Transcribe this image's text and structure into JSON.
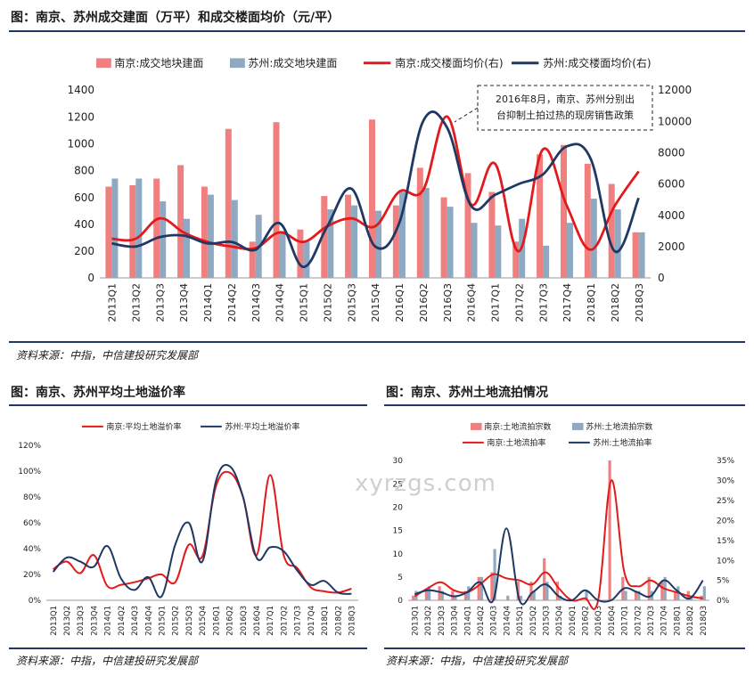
{
  "chart_data": [
    {
      "type": "bar+line",
      "title": "图：南京、苏州成交建面（万平）和成交楼面均价（元/平）",
      "categories": [
        "2013Q1",
        "2013Q2",
        "2013Q3",
        "2013Q4",
        "2014Q1",
        "2014Q2",
        "2014Q3",
        "2014Q4",
        "2015Q1",
        "2015Q2",
        "2015Q3",
        "2015Q4",
        "2016Q1",
        "2016Q2",
        "2016Q3",
        "2016Q4",
        "2017Q1",
        "2017Q2",
        "2017Q3",
        "2017Q4",
        "2018Q1",
        "2018Q2",
        "2018Q3"
      ],
      "ylim": [
        0,
        1400
      ],
      "yticks": [
        "0",
        "200",
        "400",
        "600",
        "800",
        "1000",
        "1200",
        "1400"
      ],
      "y2lim": [
        0,
        12000
      ],
      "y2ticks": [
        "0",
        "2000",
        "4000",
        "6000",
        "8000",
        "10000",
        "12000"
      ],
      "series": [
        {
          "name": "南京:成交地块建面",
          "kind": "bar",
          "axis": "left",
          "color": "#f08080",
          "values": [
            680,
            690,
            740,
            840,
            680,
            1110,
            270,
            1160,
            360,
            610,
            620,
            1180,
            540,
            820,
            600,
            780,
            640,
            270,
            920,
            990,
            850,
            700,
            340
          ]
        },
        {
          "name": "苏州:成交地块建面",
          "kind": "bar",
          "axis": "left",
          "color": "#8ea9c1",
          "values": [
            740,
            740,
            570,
            440,
            620,
            580,
            470,
            350,
            270,
            510,
            540,
            500,
            640,
            670,
            530,
            410,
            390,
            440,
            240,
            410,
            590,
            510,
            340
          ]
        },
        {
          "name": "南京:成交楼面均价(右)",
          "kind": "line",
          "axis": "right",
          "color": "#e31a1c",
          "values": [
            2500,
            2500,
            3800,
            2900,
            2300,
            2000,
            1900,
            2900,
            2300,
            3300,
            3800,
            3300,
            5500,
            5600,
            10300,
            4700,
            7300,
            1700,
            8200,
            4600,
            1800,
            4600,
            6800
          ]
        },
        {
          "name": "苏州:成交楼面均价(右)",
          "kind": "line",
          "axis": "right",
          "color": "#1f3864",
          "values": [
            2200,
            2000,
            2600,
            2700,
            2200,
            2300,
            1800,
            3500,
            700,
            3300,
            5700,
            2000,
            3500,
            10000,
            9600,
            4600,
            5300,
            6000,
            6600,
            8400,
            7600,
            1700,
            5100
          ]
        }
      ],
      "annotation": [
        "2016年8月，南京、苏州分别出",
        "台抑制土拍过热的现房销售政策"
      ]
    },
    {
      "type": "line",
      "title": "图：南京、苏州平均土地溢价率",
      "categories": [
        "2013Q1",
        "2013Q2",
        "2013Q3",
        "2013Q4",
        "2014Q1",
        "2014Q2",
        "2014Q3",
        "2014Q4",
        "2015Q1",
        "2015Q2",
        "2015Q3",
        "2015Q4",
        "2016Q1",
        "2016Q2",
        "2016Q3",
        "2016Q4",
        "2017Q1",
        "2017Q2",
        "2017Q3",
        "2017Q4",
        "2018Q1",
        "2018Q2",
        "2018Q3"
      ],
      "ylim": [
        0,
        1.2
      ],
      "yticks": [
        "0%",
        "20%",
        "40%",
        "60%",
        "80%",
        "100%",
        "120%"
      ],
      "series": [
        {
          "name": "南京:平均土地溢价率",
          "color": "#e31a1c",
          "values": [
            0.24,
            0.3,
            0.21,
            0.35,
            0.11,
            0.12,
            0.14,
            0.17,
            0.2,
            0.14,
            0.43,
            0.34,
            0.88,
            0.99,
            0.8,
            0.35,
            0.97,
            0.35,
            0.25,
            0.1,
            0.07,
            0.06,
            0.09
          ]
        },
        {
          "name": "苏州:平均土地溢价率",
          "color": "#1f3864",
          "values": [
            0.22,
            0.33,
            0.3,
            0.26,
            0.42,
            0.17,
            0.08,
            0.18,
            0.03,
            0.43,
            0.6,
            0.3,
            0.92,
            1.04,
            0.8,
            0.33,
            0.41,
            0.38,
            0.23,
            0.12,
            0.15,
            0.06,
            0.05
          ]
        }
      ]
    },
    {
      "type": "bar+line",
      "title": "图：南京、苏州土地流拍情况",
      "categories": [
        "2013Q1",
        "2013Q2",
        "2013Q3",
        "2013Q4",
        "2014Q1",
        "2014Q2",
        "2014Q3",
        "2014Q4",
        "2015Q1",
        "2015Q2",
        "2015Q3",
        "2015Q4",
        "2016Q1",
        "2016Q2",
        "2016Q3",
        "2016Q4",
        "2017Q1",
        "2017Q2",
        "2017Q3",
        "2017Q4",
        "2018Q1",
        "2018Q2",
        "2018Q3"
      ],
      "ylim": [
        0,
        30
      ],
      "yticks": [
        "0",
        "5",
        "10",
        "15",
        "20",
        "25",
        "30"
      ],
      "y2lim": [
        0,
        0.35
      ],
      "y2ticks": [
        "0%",
        "5%",
        "10%",
        "15%",
        "20%",
        "25%",
        "30%",
        "35%"
      ],
      "series": [
        {
          "name": "南京:土地流拍宗数",
          "kind": "bar",
          "axis": "left",
          "color": "#f08080",
          "values": [
            1,
            2,
            3,
            2,
            2,
            5,
            6,
            0,
            4,
            4,
            9,
            4,
            0,
            0,
            0,
            30,
            5,
            2,
            5,
            4,
            2,
            2,
            1
          ]
        },
        {
          "name": "苏州:土地流拍宗数",
          "kind": "bar",
          "axis": "left",
          "color": "#8ea9c1",
          "values": [
            2,
            3,
            2,
            1,
            3,
            5,
            11,
            1,
            1,
            2,
            4,
            1,
            0,
            2,
            0,
            0,
            2,
            2,
            2,
            5,
            3,
            1,
            3
          ]
        },
        {
          "name": "南京:土地流拍率",
          "kind": "line",
          "axis": "right",
          "color": "#e31a1c",
          "values": [
            0.01,
            0.03,
            0.045,
            0.025,
            0.02,
            0.04,
            0.065,
            0.055,
            0.05,
            0.04,
            0.07,
            0.03,
            0.0,
            0.005,
            0.0,
            0.3,
            0.07,
            0.035,
            0.05,
            0.03,
            0.02,
            0.01,
            0.005
          ]
        },
        {
          "name": "苏州:土地流拍率",
          "kind": "line",
          "axis": "right",
          "color": "#1f3864",
          "values": [
            0.015,
            0.025,
            0.02,
            0.01,
            0.02,
            0.045,
            0.0,
            0.18,
            0.0,
            0.02,
            0.04,
            0.01,
            0.0,
            0.025,
            0.0,
            0.0,
            0.03,
            0.02,
            0.01,
            0.05,
            0.025,
            0.005,
            0.05
          ]
        }
      ]
    }
  ],
  "source": {
    "chart1": "资料来源：中指，中信建投研究发展部",
    "chart2": "资料来源：中指，中信建投研究发展部",
    "chart3": "资料来源：中指，中信建投研究发展部"
  },
  "watermark": "xyrzgs.com"
}
